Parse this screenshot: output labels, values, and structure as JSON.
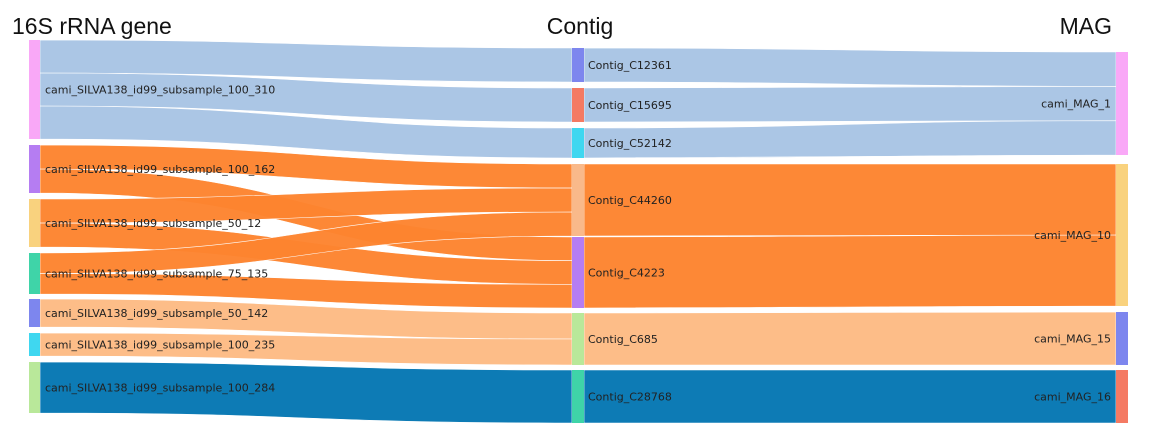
{
  "columns": {
    "left_title": "16S rRNA gene",
    "middle_title": "Contig",
    "right_title": "MAG"
  },
  "nodes": {
    "left": [
      {
        "id": "L1",
        "label": "cami_SILVA138_id99_subsample_100_310",
        "color": "#f9a8f7"
      },
      {
        "id": "L2",
        "label": "cami_SILVA138_id99_subsample_100_162",
        "color": "#b57df2"
      },
      {
        "id": "L3",
        "label": "cami_SILVA138_id99_subsample_50_12",
        "color": "#f9d27e"
      },
      {
        "id": "L4",
        "label": "cami_SILVA138_id99_subsample_75_135",
        "color": "#3fd4a8"
      },
      {
        "id": "L5",
        "label": "cami_SILVA138_id99_subsample_50_142",
        "color": "#7d86ee"
      },
      {
        "id": "L6",
        "label": "cami_SILVA138_id99_subsample_100_235",
        "color": "#3fd7f0"
      },
      {
        "id": "L7",
        "label": "cami_SILVA138_id99_subsample_100_284",
        "color": "#b9e89a"
      }
    ],
    "middle": [
      {
        "id": "C1",
        "label": "Contig_C12361",
        "color": "#7d86ee"
      },
      {
        "id": "C2",
        "label": "Contig_C15695",
        "color": "#f47a63"
      },
      {
        "id": "C3",
        "label": "Contig_C52142",
        "color": "#3fd7f0"
      },
      {
        "id": "C4",
        "label": "Contig_C44260",
        "color": "#f9b98a"
      },
      {
        "id": "C5",
        "label": "Contig_C4223",
        "color": "#b57df2"
      },
      {
        "id": "C6",
        "label": "Contig_C685",
        "color": "#b9e89a"
      },
      {
        "id": "C7",
        "label": "Contig_C28768",
        "color": "#3fd4a8"
      }
    ],
    "right": [
      {
        "id": "M1",
        "label": "cami_MAG_1",
        "color": "#f9a8f7"
      },
      {
        "id": "M2",
        "label": "cami_MAG_10",
        "color": "#f9d27e"
      },
      {
        "id": "M3",
        "label": "cami_MAG_15",
        "color": "#7d86ee"
      },
      {
        "id": "M4",
        "label": "cami_MAG_16",
        "color": "#f47a63"
      }
    ]
  },
  "link_colors": {
    "blue": "#a8c4e4",
    "orange": "#fd8430",
    "peach": "#fdbb84",
    "dark_blue": "#0577b3"
  },
  "links": [
    {
      "source": "L1",
      "target": "C1",
      "value": 3,
      "color": "blue"
    },
    {
      "source": "L1",
      "target": "C2",
      "value": 3,
      "color": "blue"
    },
    {
      "source": "L1",
      "target": "C3",
      "value": 3,
      "color": "blue"
    },
    {
      "source": "L2",
      "target": "C4",
      "value": 2,
      "color": "orange"
    },
    {
      "source": "L2",
      "target": "C5",
      "value": 2,
      "color": "orange"
    },
    {
      "source": "L3",
      "target": "C4",
      "value": 2,
      "color": "orange"
    },
    {
      "source": "L3",
      "target": "C5",
      "value": 2,
      "color": "orange"
    },
    {
      "source": "L4",
      "target": "C4",
      "value": 2,
      "color": "orange"
    },
    {
      "source": "L4",
      "target": "C5",
      "value": 2,
      "color": "orange"
    },
    {
      "source": "L5",
      "target": "C6",
      "value": 2,
      "color": "peach"
    },
    {
      "source": "L6",
      "target": "C6",
      "value": 2,
      "color": "peach"
    },
    {
      "source": "L7",
      "target": "C7",
      "value": 4,
      "color": "dark_blue"
    },
    {
      "source": "C1",
      "target": "M1",
      "value": 3,
      "color": "blue"
    },
    {
      "source": "C2",
      "target": "M1",
      "value": 3,
      "color": "blue"
    },
    {
      "source": "C3",
      "target": "M1",
      "value": 3,
      "color": "blue"
    },
    {
      "source": "C4",
      "target": "M2",
      "value": 6,
      "color": "orange"
    },
    {
      "source": "C5",
      "target": "M2",
      "value": 6,
      "color": "orange"
    },
    {
      "source": "C6",
      "target": "M3",
      "value": 4,
      "color": "peach"
    },
    {
      "source": "C7",
      "target": "M4",
      "value": 4,
      "color": "dark_blue"
    }
  ]
}
